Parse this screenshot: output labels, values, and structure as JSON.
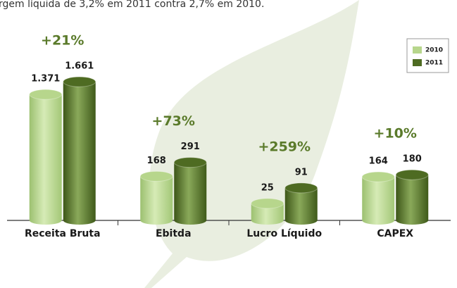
{
  "chart_data": {
    "type": "bar",
    "subtitle": "rgem líquida de 3,2% em 2011 contra 2,7% em 2010.",
    "categories": [
      "Receita Bruta",
      "Ebitda",
      "Lucro Líquido",
      "CAPEX"
    ],
    "annotations": [
      "+21%",
      "+73%",
      "+259%",
      "+10%"
    ],
    "series": [
      {
        "name": "2010",
        "color": "#b7d68c",
        "values": [
          1371,
          168,
          25,
          164
        ],
        "value_labels": [
          "1.371",
          "168",
          "25",
          "164"
        ]
      },
      {
        "name": "2011",
        "color": "#4e6b22",
        "values": [
          1661,
          291,
          91,
          180
        ],
        "value_labels": [
          "1.661",
          "291",
          "91",
          "180"
        ]
      }
    ],
    "legend": "top-right"
  }
}
